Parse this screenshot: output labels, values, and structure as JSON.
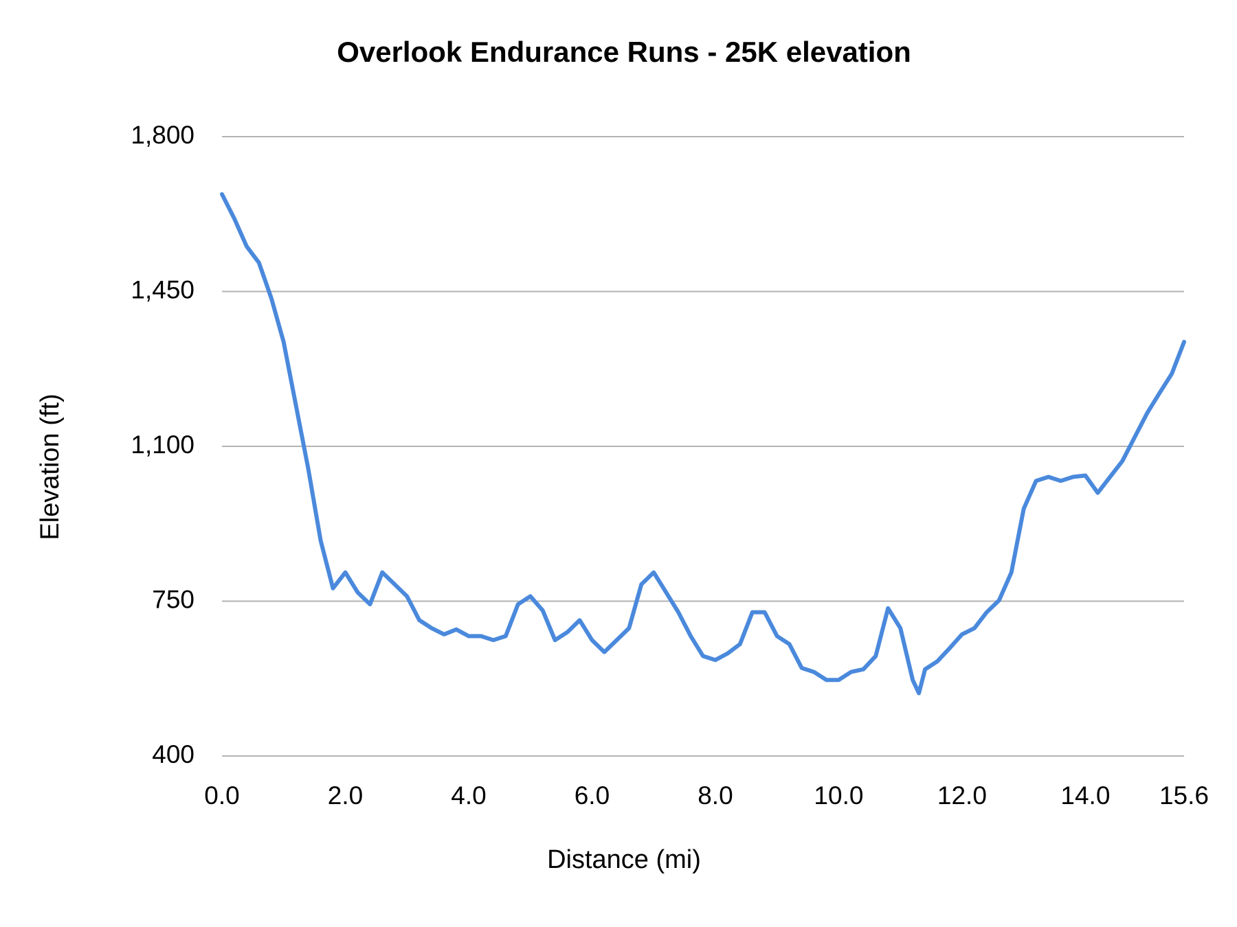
{
  "chart_data": {
    "type": "line",
    "title": "Overlook Endurance Runs - 25K elevation",
    "x_label": "Distance (mi)",
    "y_label": "Elevation (ft)",
    "x": [
      0,
      0.2,
      0.4,
      0.6,
      0.8,
      1.0,
      1.2,
      1.4,
      1.6,
      1.8,
      2.0,
      2.2,
      2.4,
      2.6,
      2.8,
      3.0,
      3.2,
      3.4,
      3.6,
      3.8,
      4.0,
      4.2,
      4.4,
      4.6,
      4.8,
      5.0,
      5.2,
      5.4,
      5.6,
      5.8,
      6.0,
      6.2,
      6.4,
      6.6,
      6.8,
      7.0,
      7.2,
      7.4,
      7.6,
      7.8,
      8.0,
      8.2,
      8.4,
      8.6,
      8.8,
      9.0,
      9.2,
      9.4,
      9.6,
      9.8,
      10.0,
      10.2,
      10.4,
      10.6,
      10.8,
      11.0,
      11.2,
      11.3,
      11.4,
      11.6,
      11.8,
      12.0,
      12.2,
      12.4,
      12.6,
      12.8,
      13.0,
      13.2,
      13.4,
      13.6,
      13.8,
      14.0,
      14.2,
      14.4,
      14.6,
      14.8,
      15.0,
      15.2,
      15.4,
      15.6
    ],
    "values": [
      1670,
      1615,
      1552,
      1515,
      1435,
      1336,
      1192,
      1049,
      887,
      779,
      815,
      770,
      743,
      815,
      788,
      761,
      707,
      689,
      675,
      686,
      671,
      671,
      662,
      671,
      743,
      761,
      729,
      662,
      680,
      707,
      662,
      635,
      662,
      689,
      788,
      815,
      770,
      725,
      671,
      626,
      617,
      632,
      653,
      725,
      725,
      671,
      653,
      599,
      590,
      572,
      572,
      590,
      596,
      626,
      734,
      689,
      572,
      542,
      596,
      614,
      644,
      675,
      689,
      725,
      752,
      815,
      959,
      1022,
      1031,
      1022,
      1031,
      1034,
      995,
      1031,
      1067,
      1121,
      1175,
      1220,
      1264,
      1336
    ],
    "color": "#4a89dc",
    "xlim": [
      0,
      15.6
    ],
    "xticks": [
      {
        "value": 0,
        "label": "0.0"
      },
      {
        "value": 2,
        "label": "2.0"
      },
      {
        "value": 4,
        "label": "4.0"
      },
      {
        "value": 6,
        "label": "6.0"
      },
      {
        "value": 8,
        "label": "8.0"
      },
      {
        "value": 10,
        "label": "10.0"
      },
      {
        "value": 12,
        "label": "12.0"
      },
      {
        "value": 14,
        "label": "14.0"
      },
      15.6
    ],
    "ylim": [
      400,
      1800
    ],
    "yticks": [
      400,
      750,
      {
        "value": 1100,
        "label": "1,100"
      },
      {
        "value": 1450,
        "label": "1,450"
      },
      {
        "value": 1800,
        "label": "1,800"
      }
    ],
    "grid": true
  }
}
